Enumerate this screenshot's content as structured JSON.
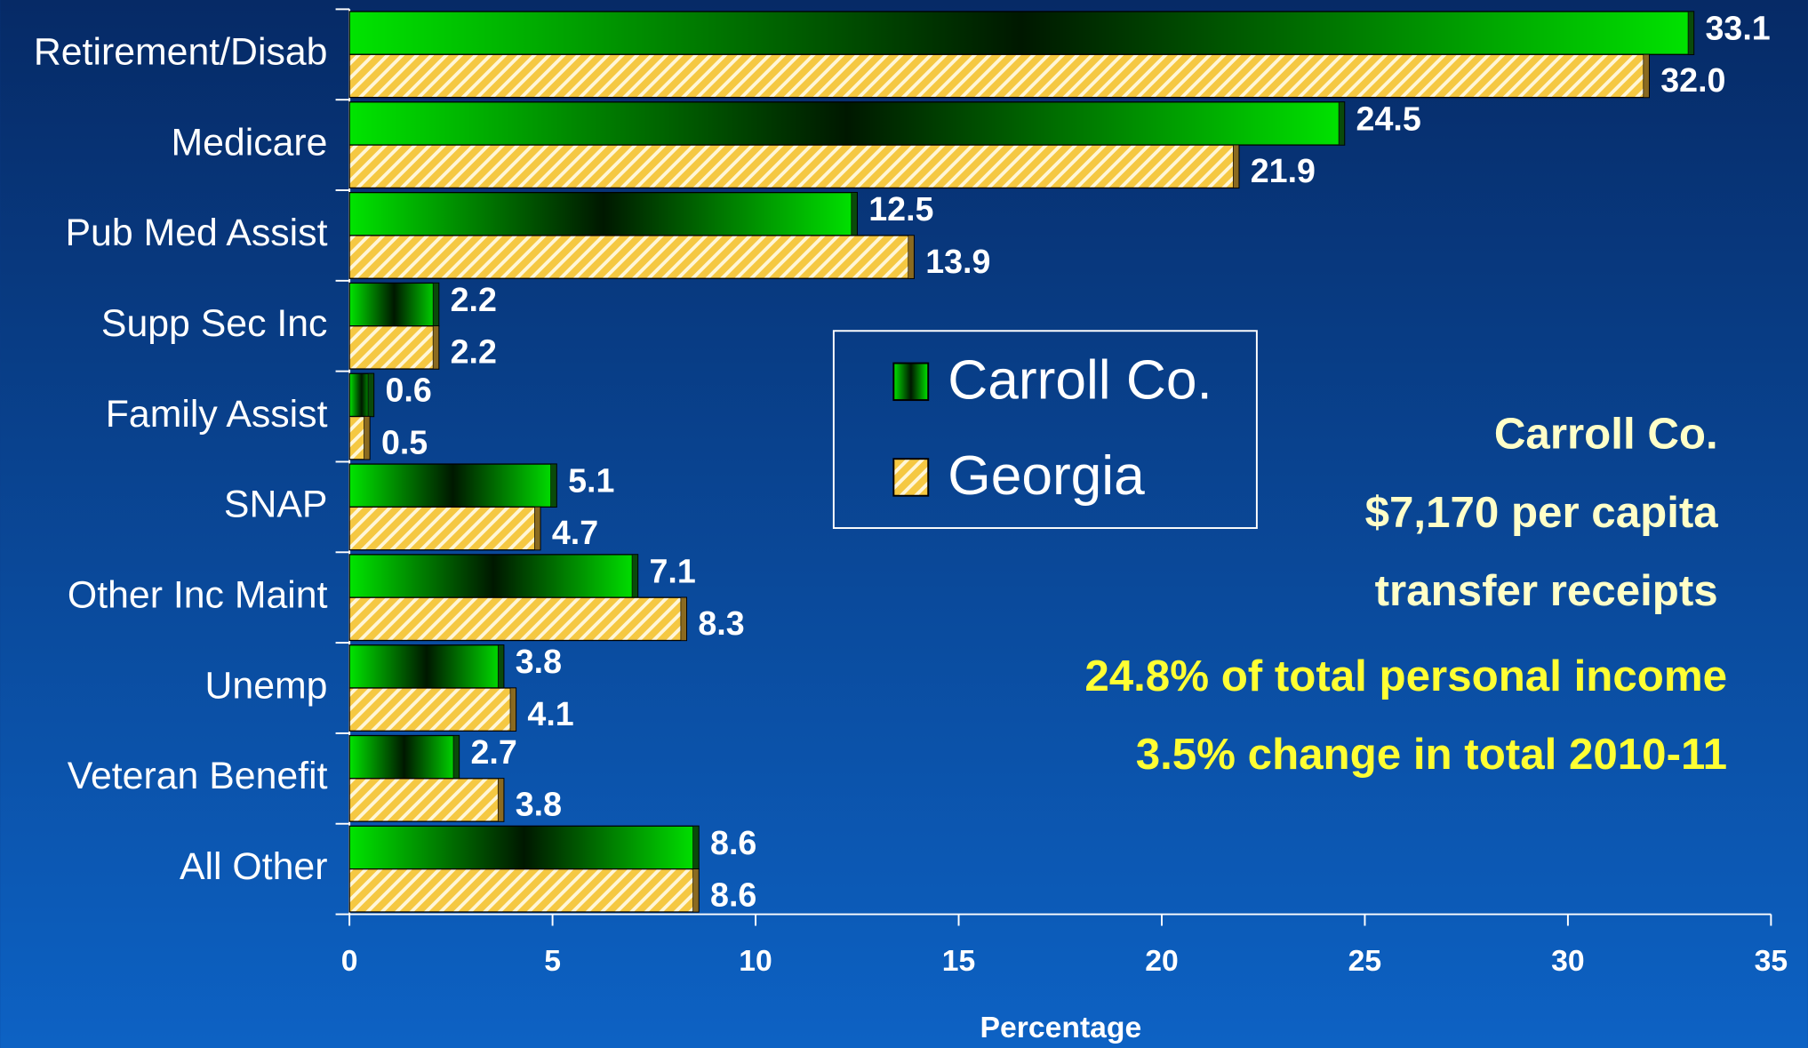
{
  "chart_data": {
    "type": "bar",
    "orientation": "horizontal",
    "x_label": "Percentage",
    "categories": [
      "Retirement/Disab",
      "Medicare",
      "Pub Med Assist",
      "Supp Sec Inc",
      "Family Assist",
      "SNAP",
      "Other Inc Maint",
      "Unemp",
      "Veteran Benefit",
      "All Other"
    ],
    "series": [
      {
        "name": "Carroll Co.",
        "color": "#00e000",
        "values": [
          33.1,
          24.5,
          12.5,
          2.2,
          0.6,
          5.1,
          7.1,
          3.8,
          2.7,
          8.6
        ]
      },
      {
        "name": "Georgia",
        "color": "#f5c842",
        "values": [
          32,
          21.9,
          13.9,
          2.2,
          0.5,
          4.7,
          8.3,
          4.1,
          3.8,
          8.6
        ],
        "value_labels": [
          "32.0",
          "21.9",
          "13.9",
          "2.2",
          "0.5",
          "4.7",
          "8.3",
          "4.1",
          "3.8",
          "8.6"
        ]
      }
    ],
    "xlim": [
      0,
      35
    ],
    "xticks": [
      0,
      5,
      10,
      15,
      20,
      25,
      30,
      35
    ],
    "annotations": [
      "Carroll Co.",
      "$7,170 per capita",
      "transfer receipts",
      "24.8% of total personal income",
      "3.5% change in total 2010-11"
    ]
  }
}
